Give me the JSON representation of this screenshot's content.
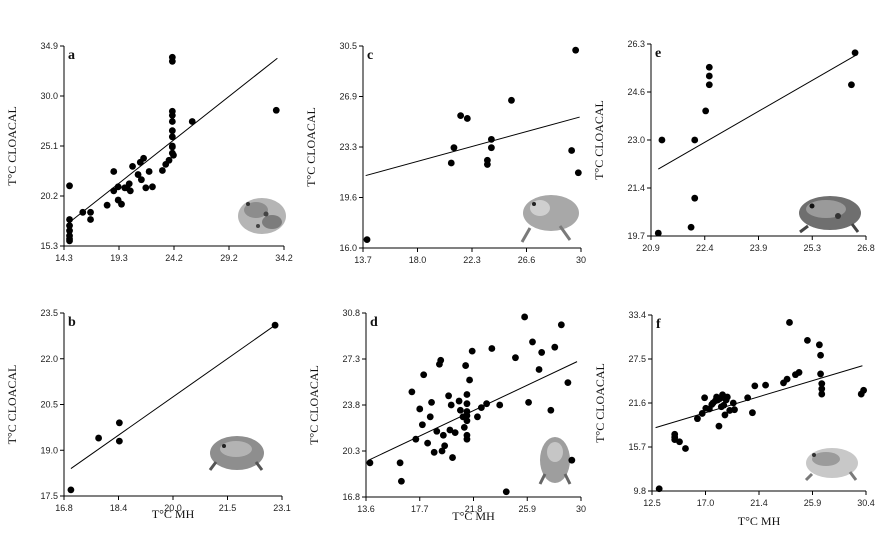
{
  "colors": {
    "axis": "#000000",
    "point": "#000000",
    "fit": "#000000"
  },
  "chart_data": [
    {
      "type": "scatter",
      "title": "a",
      "xlabel": "",
      "ylabel": "T°C CLOACAL",
      "xlim": [
        14.3,
        34.2
      ],
      "ylim": [
        15.3,
        34.9
      ],
      "xticks": [
        "14.3",
        "19.3",
        "24.2",
        "29.2",
        "34.2"
      ],
      "yticks": [
        "15.3",
        "20.2",
        "25.1",
        "30.0",
        "34.9"
      ],
      "fit": [
        [
          15.0,
          17.8
        ],
        [
          33.6,
          33.7
        ]
      ],
      "x": [
        14.8,
        14.8,
        14.8,
        14.8,
        14.8,
        14.8,
        14.8,
        16.0,
        16.7,
        16.7,
        18.2,
        18.8,
        18.8,
        19.2,
        19.2,
        19.5,
        19.8,
        20.0,
        20.2,
        20.3,
        20.5,
        21.0,
        21.2,
        21.3,
        21.5,
        21.7,
        22.0,
        22.3,
        23.2,
        23.5,
        23.8,
        24.1,
        24.1,
        24.1,
        24.1,
        24.1,
        24.1,
        24.1,
        24.1,
        24.1,
        24.1,
        24.2,
        25.9,
        33.5
      ],
      "y": [
        21.2,
        17.9,
        17.3,
        16.8,
        16.3,
        16.0,
        15.8,
        18.6,
        18.6,
        17.9,
        19.3,
        20.7,
        22.6,
        21.1,
        19.8,
        19.4,
        21.0,
        21.0,
        21.4,
        20.7,
        23.1,
        22.3,
        23.5,
        21.8,
        23.9,
        21.0,
        22.6,
        21.1,
        22.7,
        23.3,
        23.7,
        24.4,
        25.0,
        26.0,
        26.6,
        27.5,
        28.1,
        28.5,
        33.4,
        33.8,
        25.1,
        24.2,
        27.5,
        28.6
      ]
    },
    {
      "type": "scatter",
      "title": "c",
      "xlabel": "",
      "ylabel": "T°C CLOACAL",
      "xlim": [
        13.7,
        30.0
      ],
      "ylim": [
        16.0,
        30.5
      ],
      "xticks": [
        "13.7",
        "18.0",
        "22.3",
        "26.6",
        "30"
      ],
      "yticks": [
        "16.0",
        "19.6",
        "23.3",
        "26.9",
        "30.5"
      ],
      "fit": [
        [
          13.9,
          21.2
        ],
        [
          29.9,
          25.4
        ]
      ],
      "x": [
        14.0,
        20.3,
        20.5,
        21.0,
        21.5,
        23.0,
        23.0,
        23.3,
        23.3,
        24.8,
        29.3,
        29.6,
        29.8
      ],
      "y": [
        16.6,
        22.1,
        23.2,
        25.5,
        25.3,
        22.0,
        22.3,
        23.2,
        23.8,
        26.6,
        23.0,
        30.2,
        21.4
      ]
    },
    {
      "type": "scatter",
      "title": "e",
      "xlabel": "",
      "ylabel": "T°C CLOACAL",
      "xlim": [
        20.9,
        26.8
      ],
      "ylim": [
        19.7,
        26.3
      ],
      "xticks": [
        "20.9",
        "22.4",
        "23.9",
        "25.3",
        "26.8"
      ],
      "yticks": [
        "19.7",
        "21.4",
        "23.0",
        "24.6",
        "26.3"
      ],
      "fit": [
        [
          21.1,
          22.0
        ],
        [
          26.5,
          25.9
        ]
      ],
      "x": [
        21.1,
        21.2,
        22.0,
        22.1,
        22.1,
        22.4,
        22.5,
        22.5,
        22.5,
        26.4,
        26.5
      ],
      "y": [
        19.8,
        23.0,
        20.0,
        21.0,
        23.0,
        24.0,
        24.9,
        25.2,
        25.5,
        24.9,
        26.0
      ]
    },
    {
      "type": "scatter",
      "title": "b",
      "xlabel": "T°C MH",
      "ylabel": "T°C CLOACAL",
      "xlim": [
        16.8,
        23.1
      ],
      "ylim": [
        17.5,
        23.5
      ],
      "xticks": [
        "16.8",
        "18.4",
        "20.0",
        "21.5",
        "23.1"
      ],
      "yticks": [
        "17.5",
        "19.0",
        "20.5",
        "22.0",
        "23.5"
      ],
      "fit": [
        [
          17.0,
          18.4
        ],
        [
          22.9,
          23.1
        ]
      ],
      "x": [
        17.0,
        17.8,
        18.4,
        18.4,
        22.9
      ],
      "y": [
        17.7,
        19.4,
        19.3,
        19.9,
        23.1
      ]
    },
    {
      "type": "scatter",
      "title": "d",
      "xlabel": "T°C MH",
      "ylabel": "T°C CLOACAL",
      "xlim": [
        13.6,
        30.0
      ],
      "ylim": [
        16.8,
        30.8
      ],
      "xticks": [
        "13.6",
        "17.7",
        "21.8",
        "25.9",
        "30"
      ],
      "yticks": [
        "16.8",
        "20.3",
        "23.8",
        "27.3",
        "30.8"
      ],
      "fit": [
        [
          13.8,
          19.6
        ],
        [
          29.7,
          27.1
        ]
      ],
      "x": [
        13.9,
        16.2,
        16.3,
        17.1,
        17.4,
        17.7,
        17.9,
        18.0,
        18.3,
        18.5,
        18.6,
        18.8,
        19.0,
        19.2,
        19.3,
        19.4,
        19.5,
        19.6,
        19.9,
        20.0,
        20.1,
        20.2,
        20.4,
        20.7,
        20.8,
        21.0,
        21.1,
        21.2,
        21.3,
        21.3,
        21.3,
        21.3,
        21.3,
        21.3,
        21.3,
        21.5,
        21.7,
        22.1,
        22.4,
        22.8,
        23.2,
        23.8,
        24.3,
        25.0,
        25.7,
        26.0,
        26.3,
        26.8,
        27.0,
        27.7,
        28.0,
        28.5,
        29.0,
        29.3
      ],
      "y": [
        19.4,
        19.4,
        18.0,
        24.8,
        21.2,
        23.5,
        22.3,
        26.1,
        20.9,
        22.9,
        24.0,
        20.2,
        21.8,
        26.9,
        27.2,
        20.3,
        21.5,
        20.7,
        24.5,
        21.9,
        23.8,
        19.8,
        21.7,
        24.1,
        23.4,
        22.9,
        22.1,
        26.8,
        21.5,
        22.6,
        23.0,
        23.3,
        23.9,
        24.6,
        21.2,
        25.7,
        27.9,
        22.9,
        23.6,
        23.9,
        28.1,
        23.8,
        17.2,
        27.4,
        30.5,
        24.0,
        28.6,
        26.5,
        27.8,
        23.4,
        28.2,
        29.9,
        25.5,
        19.6
      ]
    },
    {
      "type": "scatter",
      "title": "f",
      "xlabel": "T°C MH",
      "ylabel": "T°C CLOACAL",
      "xlim": [
        12.5,
        30.4
      ],
      "ylim": [
        9.8,
        33.4
      ],
      "xticks": [
        "12.5",
        "17.0",
        "21.4",
        "25.9",
        "30.4"
      ],
      "yticks": [
        "9.8",
        "15.7",
        "21.6",
        "27.5",
        "33.4"
      ],
      "fit": [
        [
          12.8,
          18.3
        ],
        [
          30.1,
          26.6
        ]
      ],
      "x": [
        13.1,
        14.4,
        14.4,
        14.4,
        14.8,
        15.3,
        16.3,
        16.7,
        16.9,
        17.0,
        17.3,
        17.5,
        17.6,
        17.8,
        17.9,
        18.0,
        18.1,
        18.2,
        18.3,
        18.4,
        18.5,
        18.6,
        18.7,
        18.8,
        19.0,
        19.3,
        19.4,
        20.5,
        20.9,
        21.1,
        22.0,
        23.5,
        23.8,
        24.0,
        24.5,
        24.8,
        25.5,
        26.5,
        26.6,
        26.6,
        26.7,
        26.7,
        26.7,
        30.0,
        30.2
      ],
      "y": [
        10.1,
        17.4,
        17.0,
        16.7,
        16.4,
        15.5,
        19.5,
        20.2,
        22.3,
        20.9,
        20.8,
        21.4,
        21.6,
        21.9,
        22.4,
        22.0,
        18.5,
        22.2,
        21.1,
        22.7,
        21.3,
        20.0,
        22.0,
        22.4,
        20.6,
        21.6,
        20.7,
        22.3,
        20.3,
        23.9,
        24.0,
        24.3,
        24.8,
        32.4,
        25.4,
        25.7,
        30.0,
        29.4,
        28.0,
        25.5,
        24.2,
        22.8,
        23.5,
        22.8,
        23.3
      ]
    }
  ]
}
